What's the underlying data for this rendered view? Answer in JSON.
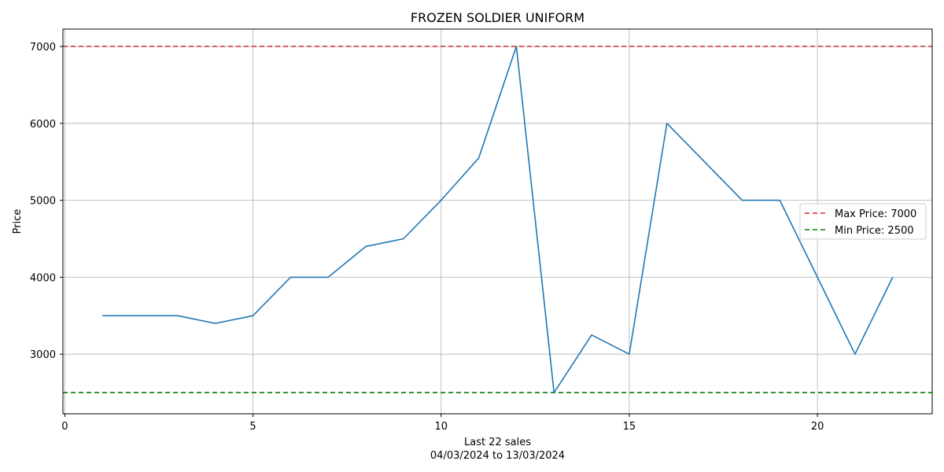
{
  "chart_data": {
    "type": "line",
    "title": "FROZEN SOLDIER UNIFORM",
    "xlabel": "Last 22 sales",
    "xlabel_sub": "04/03/2024 to 13/03/2024",
    "ylabel": "Price",
    "x": [
      1,
      2,
      3,
      4,
      5,
      6,
      7,
      8,
      9,
      10,
      11,
      12,
      13,
      14,
      15,
      16,
      17,
      18,
      19,
      20,
      21,
      22
    ],
    "series": [
      {
        "values": [
          3500,
          3500,
          3500,
          3400,
          3500,
          4000,
          4000,
          4400,
          4500,
          5000,
          5550,
          7000,
          2500,
          3250,
          3000,
          6000,
          5500,
          5000,
          5000,
          4000,
          3000,
          4000
        ],
        "color": "#1f77b4"
      }
    ],
    "reference_lines": [
      {
        "label": "Max Price: 7000",
        "value": 7000,
        "color": "#d62728",
        "style": "dashed"
      },
      {
        "label": "Min Price: 2500",
        "value": 2500,
        "color": "#008000",
        "style": "dashed"
      }
    ],
    "xlim": [
      -0.05,
      23.05
    ],
    "ylim": [
      2225,
      7225
    ],
    "xticks": [
      0,
      5,
      10,
      15,
      20
    ],
    "yticks": [
      3000,
      4000,
      5000,
      6000,
      7000
    ],
    "grid": true,
    "legend_position": "right"
  }
}
